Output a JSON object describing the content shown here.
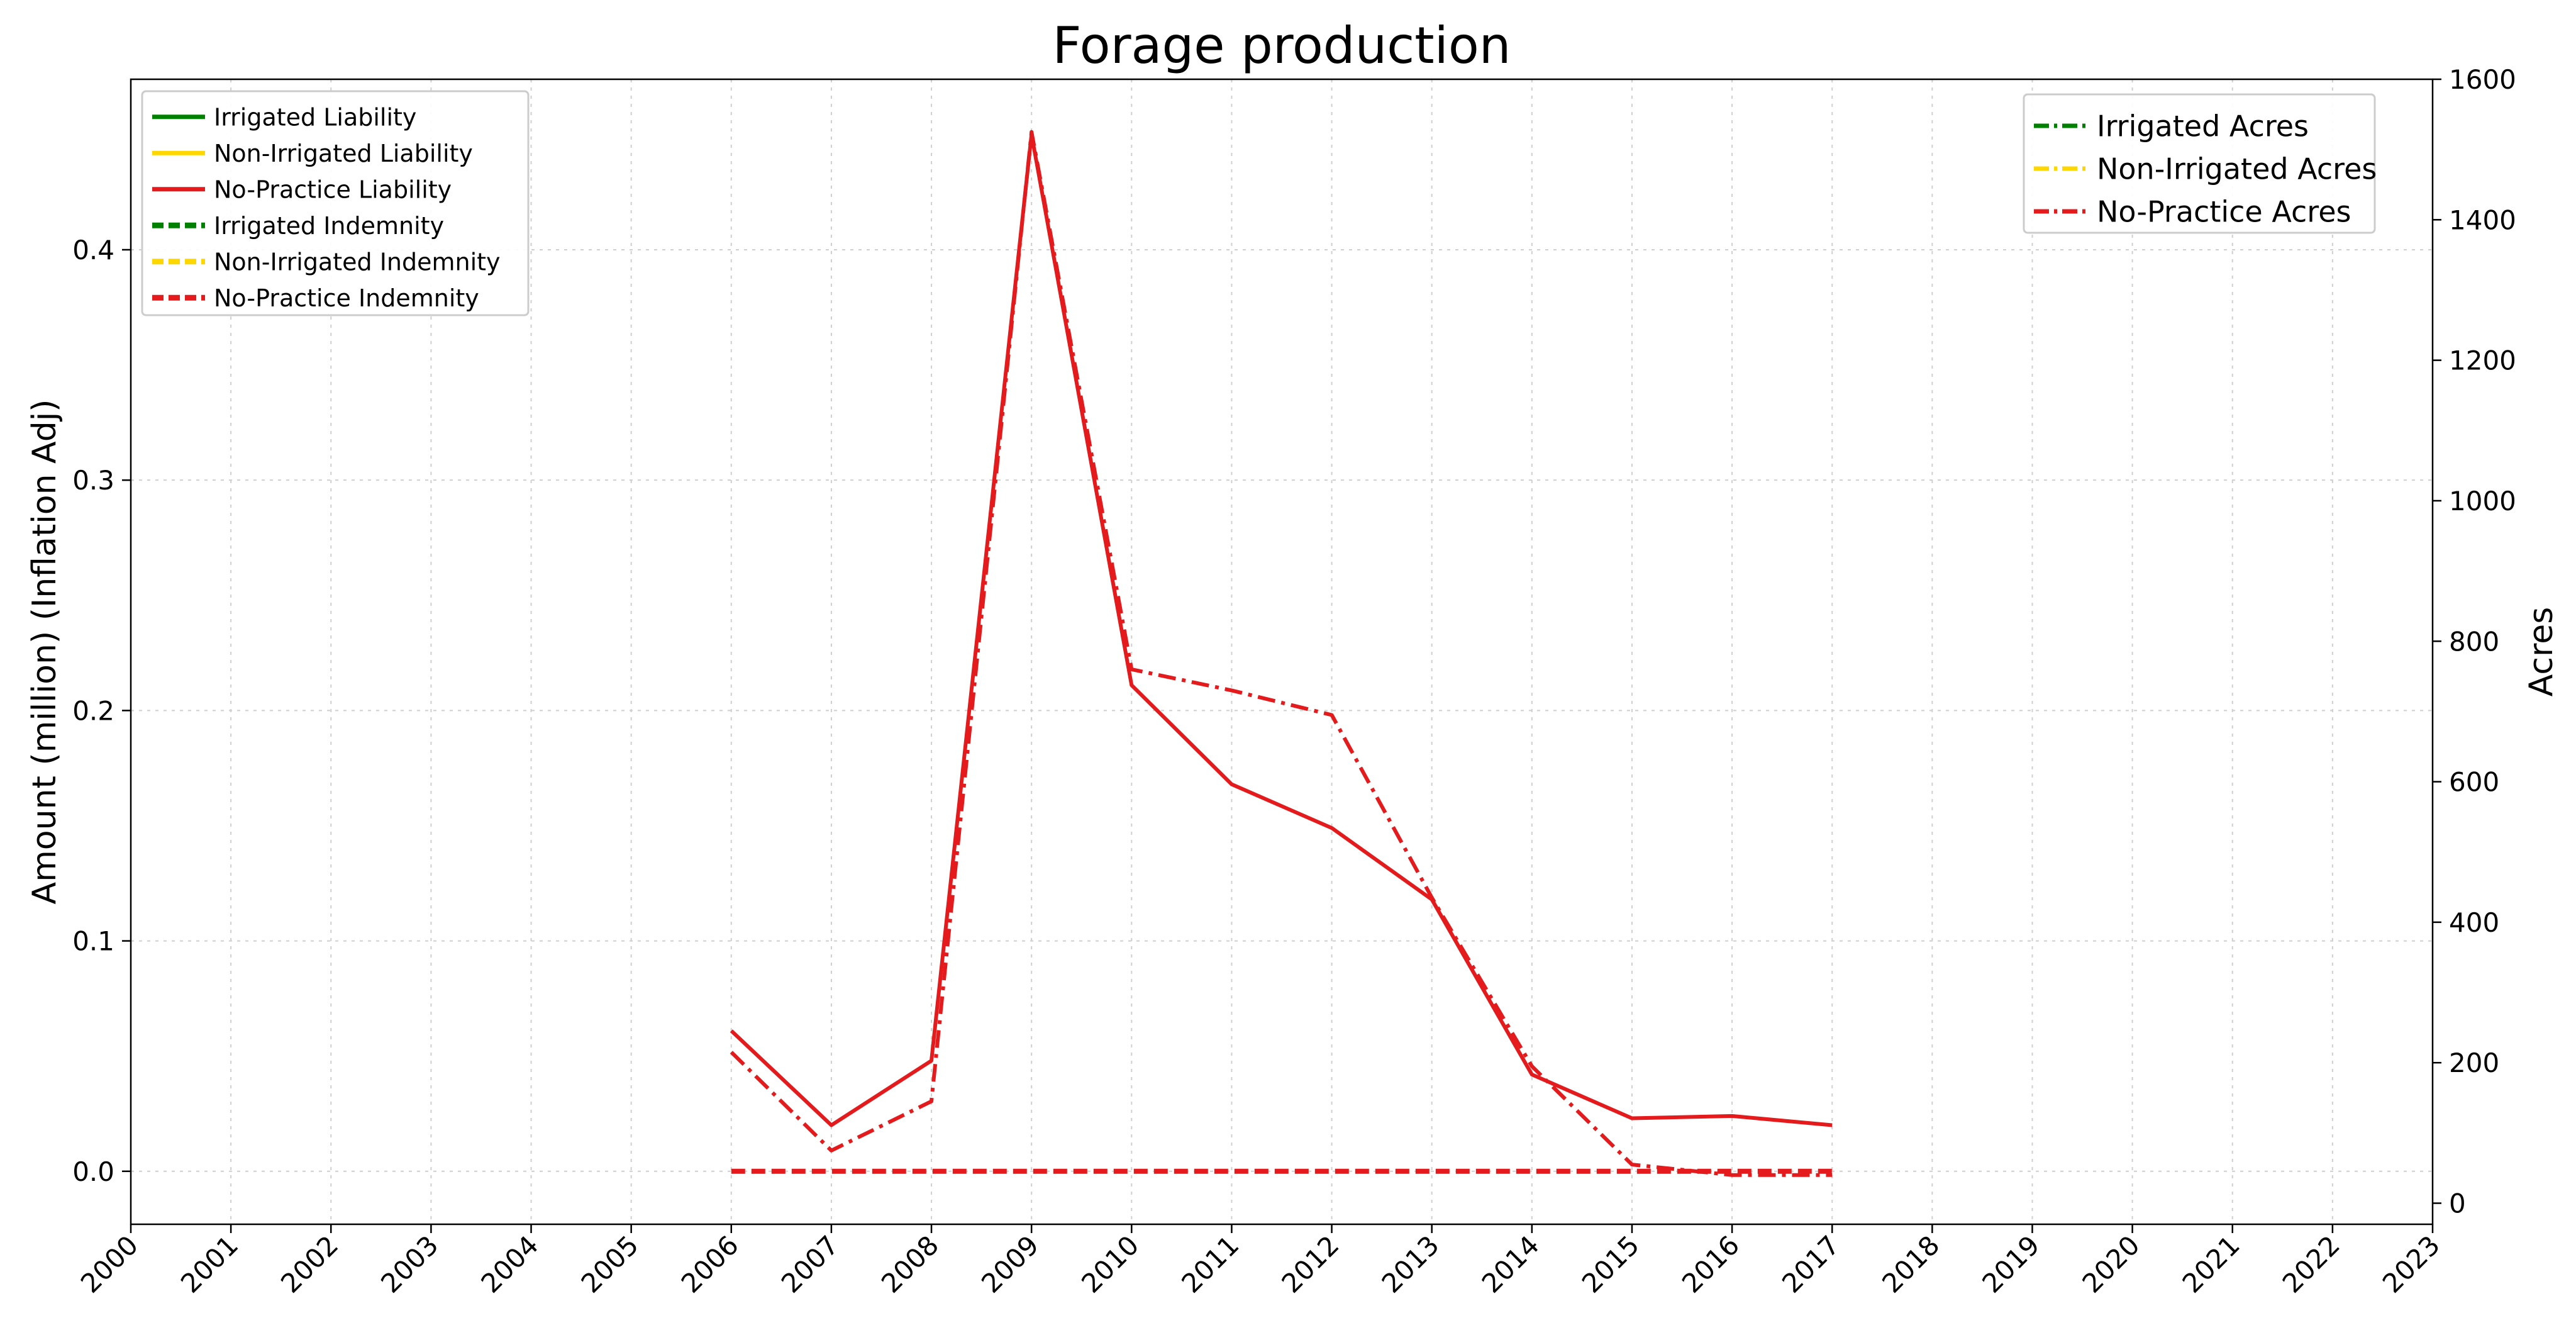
{
  "chart_data": {
    "type": "line",
    "title": "Forage production",
    "ylabel_left": "Amount (million) (Inflation Adj)",
    "ylabel_right": "Acres",
    "xlabel": "",
    "x_ticks": [
      "2000",
      "2001",
      "2002",
      "2003",
      "2004",
      "2005",
      "2006",
      "2007",
      "2008",
      "2009",
      "2010",
      "2011",
      "2012",
      "2013",
      "2014",
      "2015",
      "2016",
      "2017",
      "2018",
      "2019",
      "2020",
      "2021",
      "2022",
      "2023"
    ],
    "x_range": [
      2000,
      2023
    ],
    "y_left_range": [
      -0.023,
      0.474
    ],
    "y_left_ticks": [
      "0.0",
      "0.1",
      "0.2",
      "0.3",
      "0.4"
    ],
    "y_right_range": [
      -30,
      1600
    ],
    "y_right_ticks": [
      "0",
      "200",
      "400",
      "600",
      "800",
      "1000",
      "1200",
      "1400",
      "1600"
    ],
    "grid": true,
    "legend_left_position": "top-left",
    "legend_right_position": "top-right",
    "colors": {
      "irrigated": "#008000",
      "non_irrigated": "#FFD700",
      "no_practice": "#E41A1C"
    },
    "legend_left": [
      {
        "label": "Irrigated Liability",
        "color_key": "irrigated",
        "style": "solid"
      },
      {
        "label": "Non-Irrigated Liability",
        "color_key": "non_irrigated",
        "style": "solid"
      },
      {
        "label": "No-Practice Liability",
        "color_key": "no_practice",
        "style": "solid"
      },
      {
        "label": "Irrigated Indemnity",
        "color_key": "irrigated",
        "style": "dashed"
      },
      {
        "label": "Non-Irrigated Indemnity",
        "color_key": "non_irrigated",
        "style": "dashed"
      },
      {
        "label": "No-Practice Indemnity",
        "color_key": "no_practice",
        "style": "dashed"
      }
    ],
    "legend_right": [
      {
        "label": "Irrigated Acres",
        "color_key": "irrigated",
        "style": "dashdot"
      },
      {
        "label": "Non-Irrigated Acres",
        "color_key": "non_irrigated",
        "style": "dashdot"
      },
      {
        "label": "No-Practice Acres",
        "color_key": "no_practice",
        "style": "dashdot"
      }
    ],
    "series": [
      {
        "name": "No-Practice Liability",
        "axis": "left",
        "color_key": "no_practice",
        "style": "solid",
        "x": [
          2006,
          2007,
          2008,
          2009,
          2010,
          2011,
          2012,
          2013,
          2014,
          2015,
          2016,
          2017
        ],
        "values": [
          0.061,
          0.02,
          0.048,
          0.45,
          0.211,
          0.168,
          0.149,
          0.118,
          0.042,
          0.023,
          0.024,
          0.02
        ]
      },
      {
        "name": "No-Practice Indemnity",
        "axis": "left",
        "color_key": "no_practice",
        "style": "dashed",
        "x": [
          2006,
          2007,
          2008,
          2009,
          2010,
          2011,
          2012,
          2013,
          2014,
          2015,
          2016,
          2017
        ],
        "values": [
          0,
          0,
          0,
          0,
          0,
          0,
          0,
          0,
          0,
          0,
          0,
          0
        ]
      },
      {
        "name": "No-Practice Acres",
        "axis": "right",
        "color_key": "no_practice",
        "style": "dashdot",
        "x": [
          2006,
          2007,
          2008,
          2009,
          2010,
          2011,
          2012,
          2013,
          2014,
          2015,
          2016,
          2017
        ],
        "values": [
          215,
          75,
          145,
          1525,
          760,
          730,
          695,
          435,
          195,
          55,
          40,
          40
        ]
      }
    ]
  }
}
